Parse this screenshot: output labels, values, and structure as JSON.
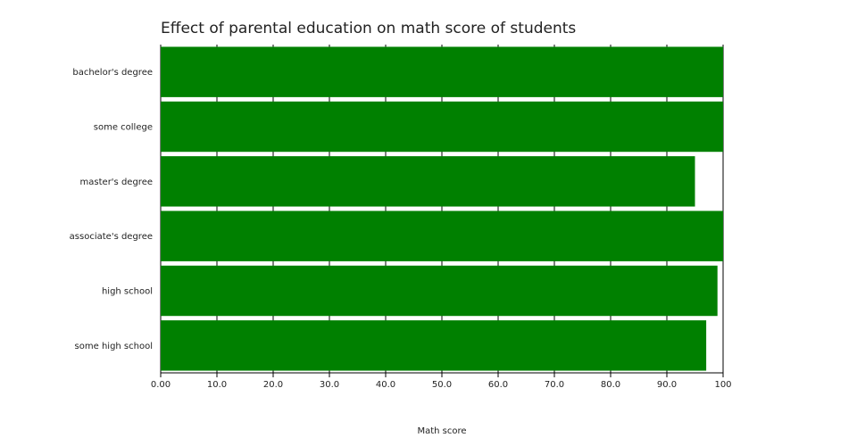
{
  "chart_data": {
    "type": "bar",
    "orientation": "horizontal",
    "title": "Effect of parental education on math score of students",
    "xlabel": "Math score",
    "ylabel": "",
    "xlim": [
      0,
      100
    ],
    "x_ticks": [
      "0.00",
      "10.0",
      "20.0",
      "30.0",
      "40.0",
      "50.0",
      "60.0",
      "70.0",
      "80.0",
      "90.0",
      "100"
    ],
    "categories": [
      "bachelor's degree",
      "some college",
      "master's degree",
      "associate's degree",
      "high school",
      "some high school"
    ],
    "values": [
      100,
      100,
      95,
      100,
      99,
      97
    ],
    "bar_color": "#008000",
    "grid": true
  }
}
